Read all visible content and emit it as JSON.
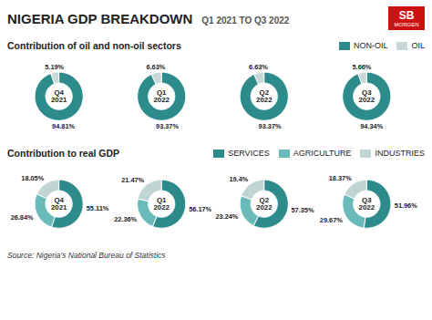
{
  "title": "NIGERIA GDP BREAKDOWN",
  "subtitle": "Q1 2021 TO Q3 2022",
  "annotations": [
    "SB",
    "MORGEN",
    "Source: Nigeria's National Bureau of Statistics"
  ],
  "chart_data": [
    {
      "type": "pie",
      "title": "Contribution of oil and non-oil sectors",
      "categories": [
        "NON-OIL",
        "OIL"
      ],
      "colors": [
        "#2e8b8b",
        "#c8d8d8"
      ],
      "legend": "top right",
      "data_labels": true,
      "series": [
        {
          "name": "Q4\n2021",
          "values": [
            94.81,
            5.19
          ],
          "value_labels": [
            "94.81%",
            "5.19%"
          ]
        },
        {
          "name": "Q1\n2022",
          "values": [
            93.37,
            6.63
          ],
          "value_labels": [
            "93.37%",
            "6.63%"
          ]
        },
        {
          "name": "Q2\n2022",
          "values": [
            93.37,
            6.63
          ],
          "value_labels": [
            "93.37%",
            "6.63%"
          ]
        },
        {
          "name": "Q3\n2022",
          "values": [
            94.34,
            5.66
          ],
          "value_labels": [
            "94.34%",
            "5.66%"
          ]
        }
      ]
    },
    {
      "type": "pie",
      "title": "Contribution to real GDP",
      "categories": [
        "SERVICES",
        "AGRICULTURE",
        "INDUSTRIES"
      ],
      "colors": [
        "#2e8b8b",
        "#6bbaba",
        "#c0d4d4"
      ],
      "legend": "top right",
      "data_labels": true,
      "series": [
        {
          "name": "Q4\n2021",
          "values": [
            55.11,
            26.84,
            18.05
          ],
          "value_labels": [
            "55.11%",
            "26.84%",
            "18.05%"
          ]
        },
        {
          "name": "Q1\n2022",
          "values": [
            56.17,
            22.36,
            21.47
          ],
          "value_labels": [
            "56.17%",
            "22.36%",
            "21.47%"
          ]
        },
        {
          "name": "Q2\n2022",
          "values": [
            57.35,
            23.24,
            19.4
          ],
          "value_labels": [
            "57.35%",
            "23.24%",
            "19.4%"
          ]
        },
        {
          "name": "Q3\n2022",
          "values": [
            51.96,
            29.67,
            18.37
          ],
          "value_labels": [
            "51.96%",
            "29.67%",
            "18.37%"
          ]
        }
      ]
    }
  ]
}
